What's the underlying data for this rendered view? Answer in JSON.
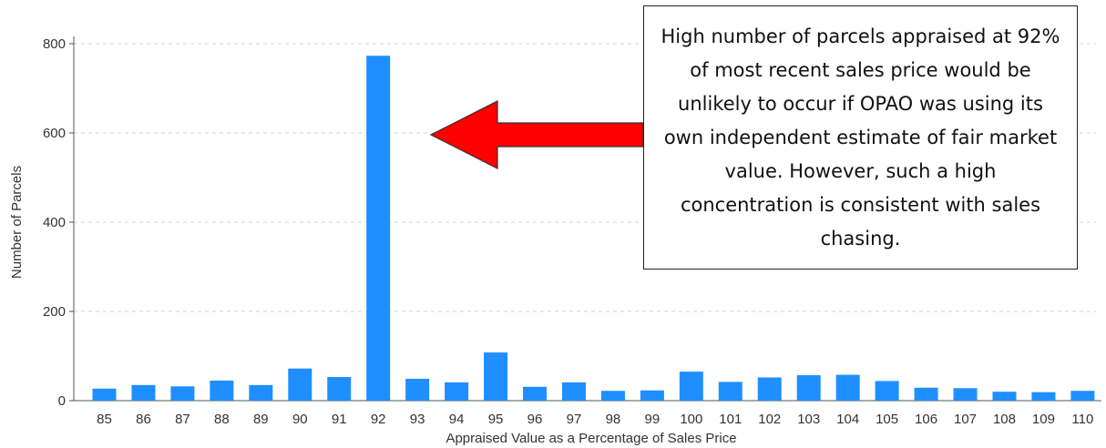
{
  "chart_data": {
    "type": "bar",
    "categories": [
      "85",
      "86",
      "87",
      "88",
      "89",
      "90",
      "91",
      "92",
      "93",
      "94",
      "95",
      "96",
      "97",
      "98",
      "99",
      "100",
      "101",
      "102",
      "103",
      "104",
      "105",
      "106",
      "107",
      "108",
      "109",
      "110"
    ],
    "values": [
      27,
      35,
      32,
      45,
      35,
      72,
      53,
      773,
      49,
      41,
      108,
      31,
      41,
      22,
      23,
      65,
      42,
      52,
      57,
      58,
      44,
      29,
      28,
      20,
      19,
      22
    ],
    "xlabel": "Appraised Value as a Percentage of Sales Price",
    "ylabel": "Number of Parcels",
    "ylim": [
      0,
      800
    ],
    "yticks": [
      0,
      200,
      400,
      600,
      800
    ],
    "grid": true,
    "bar_color": "#1f8fff"
  },
  "annotation": {
    "text": "High number of parcels appraised at 92% of most recent sales price would be unlikely to occur if OPAO was using its own independent estimate of fair market value. However, such a high concentration is consistent with sales chasing.",
    "arrow_color": "#ff0000"
  }
}
